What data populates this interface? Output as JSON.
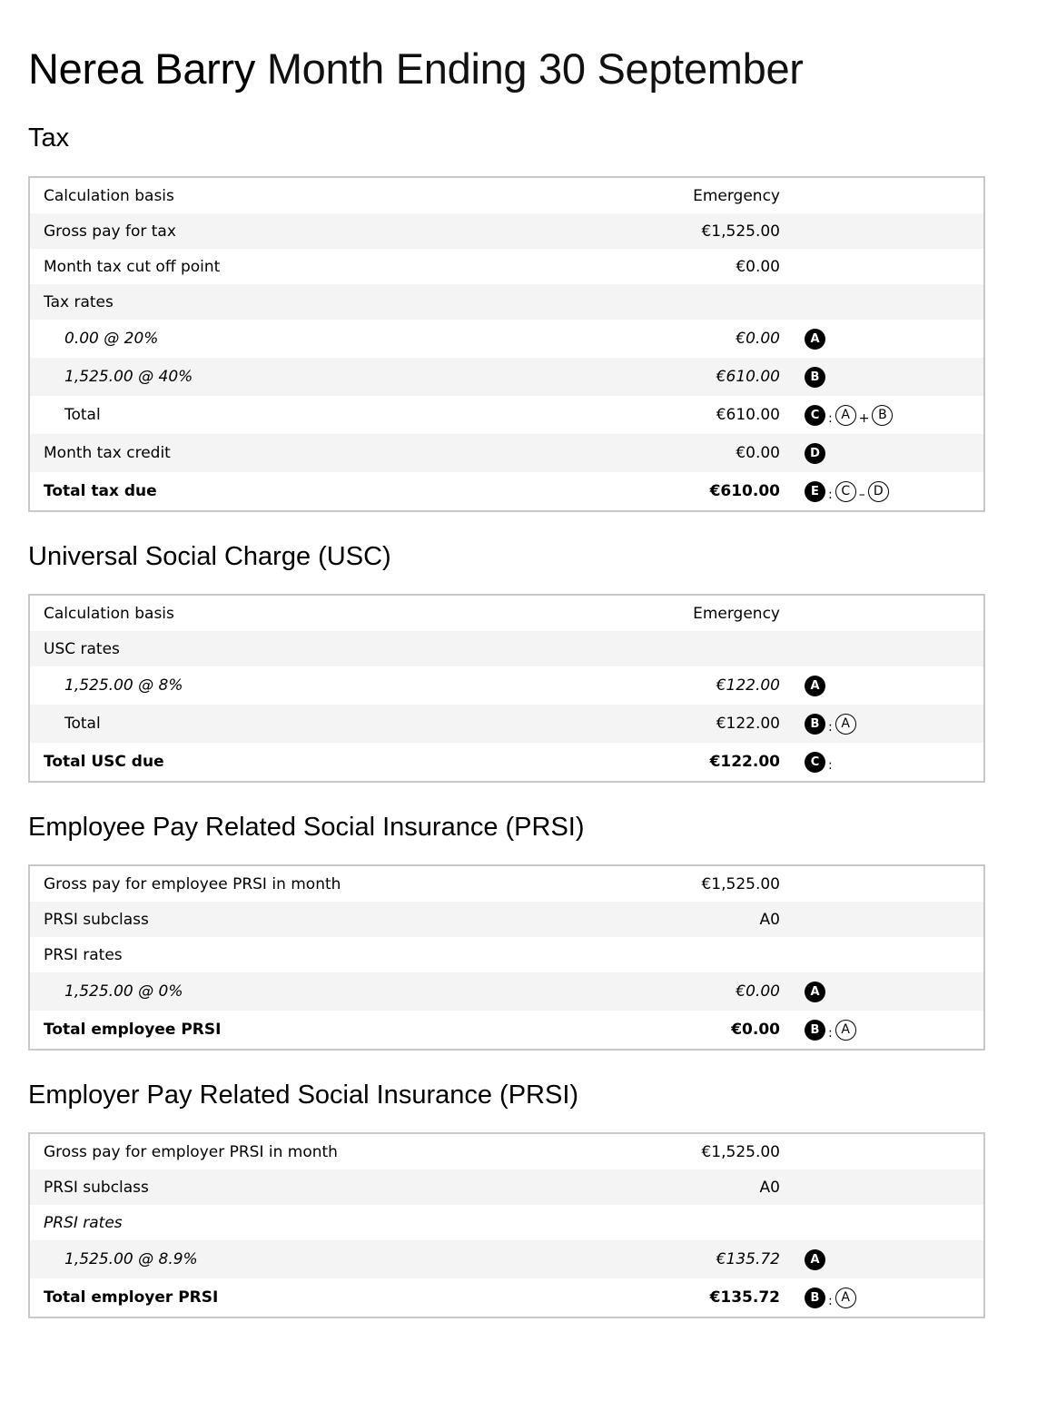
{
  "header": {
    "name": "Nerea Barry",
    "period": "Month Ending 30 September"
  },
  "tax": {
    "title": "Tax",
    "rows": [
      {
        "label": "Calculation basis",
        "value": "Emergency"
      },
      {
        "label": "Gross pay for tax",
        "value": "€1,525.00"
      },
      {
        "label": "Month tax cut off point",
        "value": "€0.00"
      },
      {
        "label": "Tax rates",
        "value": ""
      },
      {
        "label": "0.00 @ 20%",
        "value": "€0.00",
        "badge": "A"
      },
      {
        "label": "1,525.00 @ 40%",
        "value": "€610.00",
        "badge": "B"
      },
      {
        "label": "Total",
        "value": "€610.00",
        "badge": "C",
        "sep": ":",
        "ref1": "A",
        "op": "+",
        "ref2": "B"
      },
      {
        "label": "Month tax credit",
        "value": "€0.00",
        "badge": "D"
      },
      {
        "label": "Total tax due",
        "value": "€610.00",
        "badge": "E",
        "sep": ":",
        "ref1": "C",
        "op": "–",
        "ref2": "D"
      }
    ]
  },
  "usc": {
    "title": "Universal Social Charge (USC)",
    "rows": [
      {
        "label": "Calculation basis",
        "value": "Emergency"
      },
      {
        "label": "USC rates",
        "value": ""
      },
      {
        "label": "1,525.00 @ 8%",
        "value": "€122.00",
        "badge": "A"
      },
      {
        "label": "Total",
        "value": "€122.00",
        "badge": "B",
        "sep": ":",
        "ref1": "A"
      },
      {
        "label": "Total USC due",
        "value": "€122.00",
        "badge": "C",
        "sep": ":"
      }
    ]
  },
  "employee_prsi": {
    "title": "Employee Pay Related Social Insurance (PRSI)",
    "rows": [
      {
        "label": "Gross pay for employee PRSI in month",
        "value": "€1,525.00"
      },
      {
        "label": "PRSI subclass",
        "value": "A0"
      },
      {
        "label": "PRSI rates",
        "value": ""
      },
      {
        "label": "1,525.00 @ 0%",
        "value": "€0.00",
        "badge": "A"
      },
      {
        "label": "Total employee PRSI",
        "value": "€0.00",
        "badge": "B",
        "sep": ":",
        "ref1": "A"
      }
    ]
  },
  "employer_prsi": {
    "title": "Employer Pay Related Social Insurance (PRSI)",
    "rows": [
      {
        "label": "Gross pay for employer PRSI in month",
        "value": "€1,525.00"
      },
      {
        "label": "PRSI subclass",
        "value": "A0"
      },
      {
        "label": "PRSI rates",
        "value": ""
      },
      {
        "label": "1,525.00 @ 8.9%",
        "value": "€135.72",
        "badge": "A"
      },
      {
        "label": "Total employer PRSI",
        "value": "€135.72",
        "badge": "B",
        "sep": ":",
        "ref1": "A"
      }
    ]
  }
}
